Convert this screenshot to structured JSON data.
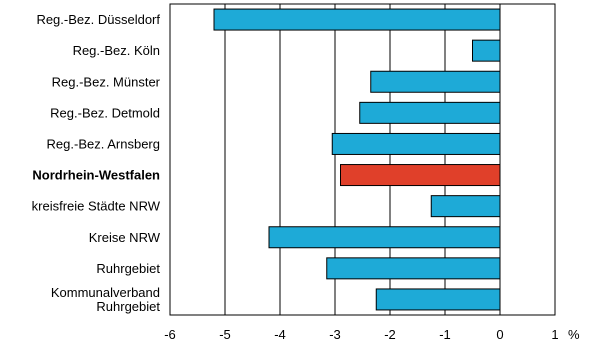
{
  "chart_data": {
    "type": "bar",
    "orientation": "horizontal",
    "categories": [
      "Reg.-Bez. Düsseldorf",
      "Reg.-Bez. Köln",
      "Reg.-Bez. Münster",
      "Reg.-Bez. Detmold",
      "Reg.-Bez. Arnsberg",
      "Nordrhein-Westfalen",
      "kreisfreie Städte NRW",
      "Kreise NRW",
      "Ruhrgebiet",
      [
        "Kommunalverband",
        "Ruhrgebiet"
      ]
    ],
    "values": [
      -5.2,
      -0.5,
      -2.35,
      -2.55,
      -3.05,
      -2.9,
      -1.25,
      -4.2,
      -3.15,
      -2.25
    ],
    "highlight_index": 5,
    "xlim": [
      -6,
      1
    ],
    "xticks": [
      -6,
      -5,
      -4,
      -3,
      -2,
      -1,
      0,
      1
    ],
    "xtick_labels": [
      "-6",
      "-5",
      "-4",
      "-3",
      "-2",
      "-1",
      "0",
      "1"
    ],
    "unit_label": "%",
    "grid": "vertical",
    "title": "",
    "xlabel": "",
    "ylabel": ""
  },
  "colors": {
    "bar": "#1eaad7",
    "highlight": "#e0402a",
    "grid": "#000000",
    "text": "#000000"
  }
}
